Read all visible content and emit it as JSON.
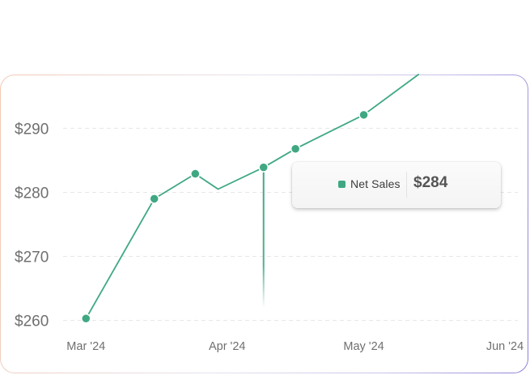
{
  "colors": {
    "series": "#3fa882",
    "grid": "#e6e6e6",
    "tick_text": "#6f6f6f"
  },
  "chart_data": {
    "type": "line",
    "title": "",
    "xlabel": "",
    "ylabel": "",
    "x_ticks": [
      "Mar '24",
      "Apr '24",
      "May '24",
      "Jun '24"
    ],
    "y_ticks": [
      "$260",
      "$270",
      "$280",
      "$290"
    ],
    "y_tick_values": [
      260,
      270,
      280,
      290
    ],
    "ylim": [
      259.7,
      298.4
    ],
    "x_range": [
      "2024-02-28",
      "2024-06-01"
    ],
    "grid": true,
    "legend": "none",
    "series": [
      {
        "name": "Net Sales",
        "points": [
          {
            "x": "2024-03-01",
            "y": 260.3,
            "marker": true
          },
          {
            "x": "2024-03-16",
            "y": 279.0,
            "marker": true
          },
          {
            "x": "2024-03-25",
            "y": 282.9,
            "marker": true
          },
          {
            "x": "2024-03-30",
            "y": 280.5,
            "marker": false
          },
          {
            "x": "2024-04-09",
            "y": 283.9,
            "marker": true
          },
          {
            "x": "2024-04-16",
            "y": 286.8,
            "marker": true
          },
          {
            "x": "2024-05-01",
            "y": 292.1,
            "marker": true
          },
          {
            "x": "2024-05-13",
            "y": 298.4,
            "marker": false
          }
        ]
      }
    ],
    "hover": {
      "x": "2024-04-09",
      "series": "Net Sales",
      "value_label": "$284"
    }
  }
}
